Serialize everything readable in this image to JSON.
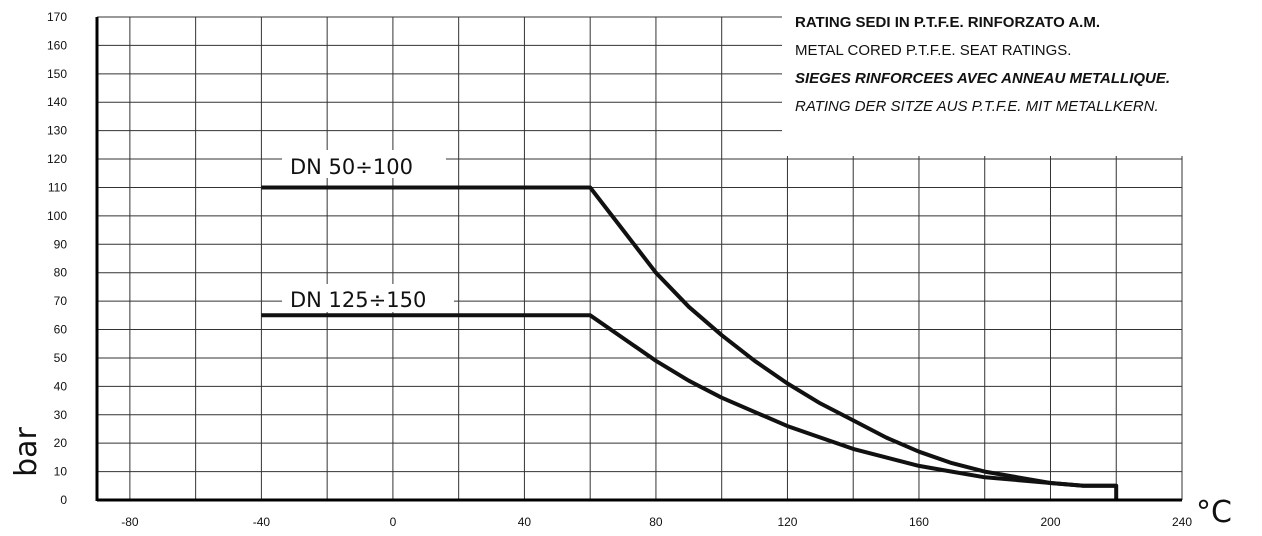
{
  "chart_data": {
    "type": "line",
    "title_lines": [
      "RATING SEDI IN P.T.F.E. RINFORZATO A.M.",
      "METAL CORED P.T.F.E. SEAT RATINGS.",
      "SIEGES RINFORCEES AVEC ANNEAU METALLIQUE.",
      "RATING DER SITZE AUS P.T.F.E. MIT METALLKERN."
    ],
    "xlabel": "°C",
    "ylabel": "bar",
    "xlim": [
      -90,
      240
    ],
    "ylim": [
      0,
      170
    ],
    "x_ticks": [
      -80,
      -40,
      0,
      40,
      80,
      120,
      160,
      200,
      240
    ],
    "y_ticks": [
      0,
      10,
      20,
      30,
      40,
      50,
      60,
      70,
      80,
      90,
      100,
      110,
      120,
      130,
      140,
      150,
      160,
      170
    ],
    "x_grid_step": 20,
    "y_grid_step": 10,
    "grid": true,
    "series": [
      {
        "name": "DN  50÷100",
        "x": [
          -40,
          60,
          70,
          80,
          90,
          100,
          110,
          120,
          130,
          140,
          150,
          160,
          170,
          180,
          190,
          200,
          210,
          220,
          220
        ],
        "y": [
          110,
          110,
          95,
          80,
          68,
          58,
          49,
          41,
          34,
          28,
          22,
          17,
          13,
          10,
          8,
          6,
          5,
          5,
          0
        ]
      },
      {
        "name": "DN  125÷150",
        "x": [
          -40,
          60,
          70,
          80,
          90,
          100,
          110,
          120,
          130,
          140,
          150,
          160,
          170,
          180,
          190,
          200,
          210,
          220
        ],
        "y": [
          65,
          65,
          57,
          49,
          42,
          36,
          31,
          26,
          22,
          18,
          15,
          12,
          10,
          8,
          7,
          6,
          5,
          5
        ]
      }
    ]
  }
}
